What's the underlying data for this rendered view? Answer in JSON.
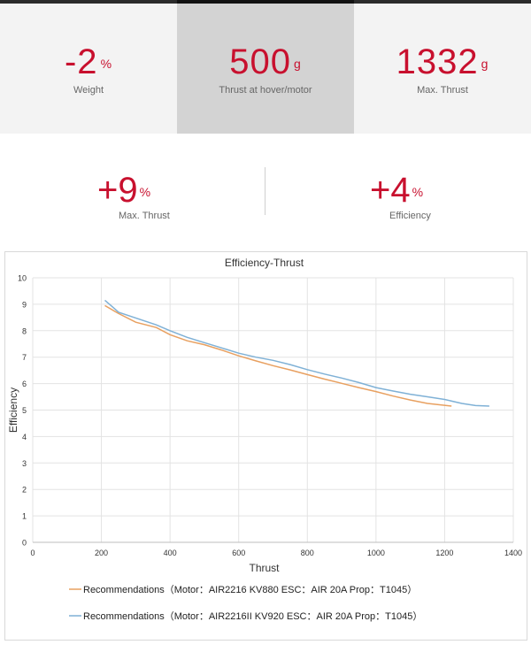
{
  "stats": [
    {
      "value": "-2",
      "unit": "%",
      "label": "Weight"
    },
    {
      "value": "500",
      "unit": "g",
      "label": "Thrust at hover/motor"
    },
    {
      "value": "1332",
      "unit": "g",
      "label": "Max. Thrust"
    }
  ],
  "comparison": [
    {
      "value": "+9",
      "unit": "%",
      "label": "Max. Thrust"
    },
    {
      "value": "+4",
      "unit": "%",
      "label": "Efficiency"
    }
  ],
  "colors": {
    "accent": "#c8102e",
    "series1": "#e8a060",
    "series2": "#7fb1d6"
  },
  "chart_data": {
    "type": "line",
    "title": "Efficiency-Thrust",
    "xlabel": "Thrust",
    "ylabel": "Efficiency",
    "xlim": [
      0,
      1400
    ],
    "ylim": [
      0,
      10
    ],
    "xticks": [
      0,
      200,
      400,
      600,
      800,
      1000,
      1200,
      1400
    ],
    "yticks": [
      0,
      1,
      2,
      3,
      4,
      5,
      6,
      7,
      8,
      9,
      10
    ],
    "grid": true,
    "legend_position": "bottom",
    "series": [
      {
        "name": "Recommendations（Motor：AIR2216  KV880    ESC：AIR 20A    Prop：T1045）",
        "color": "#e8a060",
        "x": [
          210,
          250,
          300,
          360,
          400,
          450,
          500,
          550,
          600,
          650,
          700,
          750,
          800,
          850,
          900,
          950,
          1000,
          1050,
          1100,
          1150,
          1220
        ],
        "y": [
          8.95,
          8.65,
          8.32,
          8.12,
          7.85,
          7.62,
          7.47,
          7.27,
          7.05,
          6.86,
          6.68,
          6.52,
          6.34,
          6.17,
          6.01,
          5.85,
          5.7,
          5.53,
          5.38,
          5.25,
          5.15
        ]
      },
      {
        "name": "Recommendations（Motor：AIR2216II KV920    ESC：AIR 20A    Prop：T1045）",
        "color": "#7fb1d6",
        "x": [
          210,
          250,
          300,
          360,
          400,
          450,
          500,
          550,
          600,
          650,
          700,
          750,
          800,
          850,
          900,
          950,
          1000,
          1050,
          1100,
          1150,
          1200,
          1250,
          1290,
          1330
        ],
        "y": [
          9.15,
          8.7,
          8.48,
          8.22,
          8.0,
          7.75,
          7.55,
          7.35,
          7.15,
          7.0,
          6.88,
          6.72,
          6.53,
          6.36,
          6.21,
          6.04,
          5.85,
          5.72,
          5.6,
          5.5,
          5.4,
          5.25,
          5.17,
          5.15
        ]
      }
    ]
  }
}
